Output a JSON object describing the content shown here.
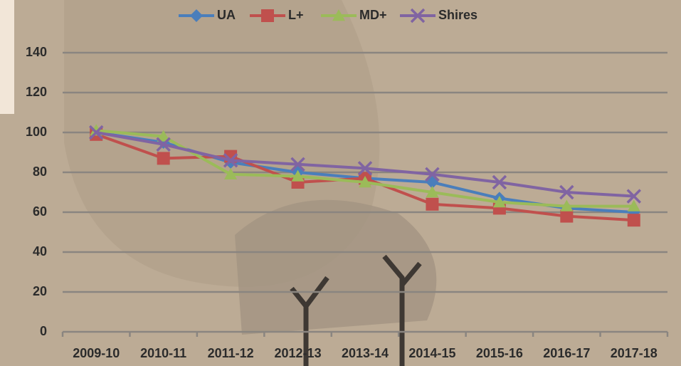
{
  "chart_data": {
    "type": "line",
    "categories": [
      "2009-10",
      "2010-11",
      "2011-12",
      "2012-13",
      "2013-14",
      "2014-15",
      "2015-16",
      "2016-17",
      "2017-18"
    ],
    "series": [
      {
        "name": "UA",
        "color": "#4a7ebb",
        "marker": "diamond",
        "values": [
          100,
          95,
          85,
          80,
          77,
          75,
          67,
          62,
          60
        ]
      },
      {
        "name": "L+",
        "color": "#c0504d",
        "marker": "square",
        "values": [
          99,
          87,
          88,
          75,
          77,
          64,
          62,
          58,
          56
        ]
      },
      {
        "name": "MD+",
        "color": "#9bbb59",
        "marker": "triangle",
        "values": [
          101,
          98,
          79,
          78,
          75,
          70,
          65,
          63,
          63
        ]
      },
      {
        "name": "Shires",
        "color": "#8064a2",
        "marker": "x",
        "values": [
          100,
          94,
          86,
          84,
          82,
          79,
          75,
          70,
          68
        ]
      }
    ],
    "ylim": [
      0,
      140
    ],
    "yticks": [
      0,
      20,
      40,
      60,
      80,
      100,
      120,
      140
    ],
    "grid": true,
    "legend": "top"
  }
}
